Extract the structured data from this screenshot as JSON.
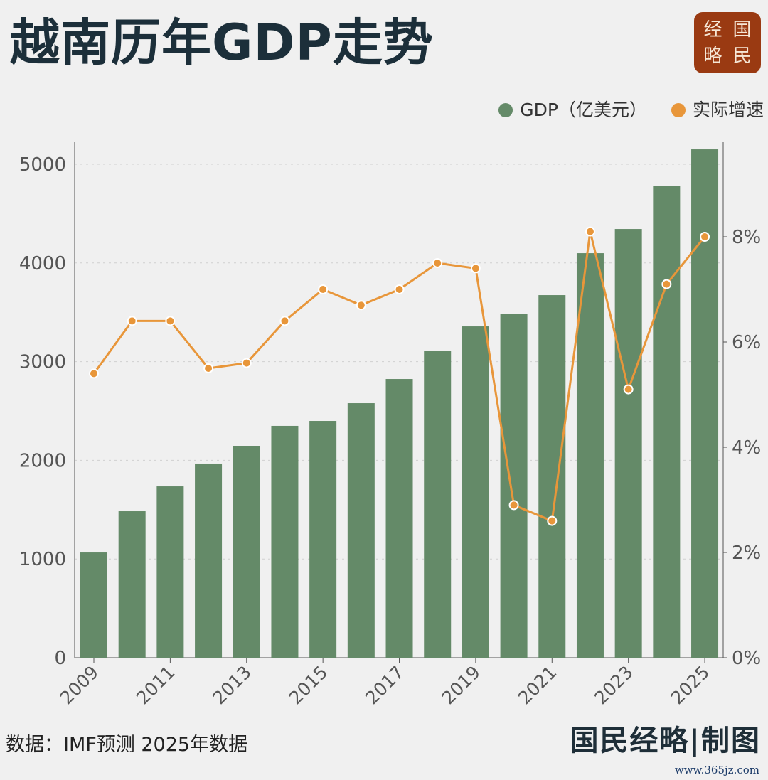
{
  "title": "越南历年GDP走势",
  "logo": [
    "经",
    "国",
    "略",
    "民"
  ],
  "legend": [
    {
      "label": "GDP（亿美元）",
      "color": "#648a68"
    },
    {
      "label": "实际增速",
      "color": "#e8963a"
    }
  ],
  "chart_data": {
    "type": "bar+line",
    "categories": [
      "2009",
      "2010",
      "2011",
      "2012",
      "2013",
      "2014",
      "2015",
      "2016",
      "2017",
      "2018",
      "2019",
      "2020",
      "2021",
      "2022",
      "2023",
      "2024",
      "2025"
    ],
    "x_tick_labels": [
      "2009",
      "2011",
      "2013",
      "2015",
      "2017",
      "2019",
      "2021",
      "2023",
      "2025"
    ],
    "series": [
      {
        "name": "GDP（亿美元）",
        "type": "bar",
        "axis": "left",
        "color": "#648a68",
        "values": [
          1066,
          1484,
          1736,
          1967,
          2147,
          2349,
          2399,
          2579,
          2824,
          3112,
          3357,
          3480,
          3674,
          4099,
          4344,
          4777,
          5151
        ]
      },
      {
        "name": "实际增速",
        "type": "line",
        "axis": "right",
        "color": "#e8963a",
        "values": [
          5.4,
          6.4,
          6.4,
          5.5,
          5.6,
          6.4,
          7.0,
          6.7,
          7.0,
          7.5,
          7.4,
          2.9,
          2.6,
          8.1,
          5.1,
          7.1,
          8.0
        ]
      }
    ],
    "ylim_left": [
      0,
      5200
    ],
    "yticks_left": [
      "0",
      "1000",
      "2000",
      "3000",
      "4000",
      "5000"
    ],
    "ylim_right": [
      0,
      9.75
    ],
    "yticks_right": [
      "0%",
      "2%",
      "4%",
      "6%",
      "8%"
    ],
    "grid": true,
    "legend_position": "top-right"
  },
  "footer": {
    "source": "数据：IMF预测  2025年数据",
    "brand": "国民经略|制图",
    "url": "www.365jz.com"
  }
}
